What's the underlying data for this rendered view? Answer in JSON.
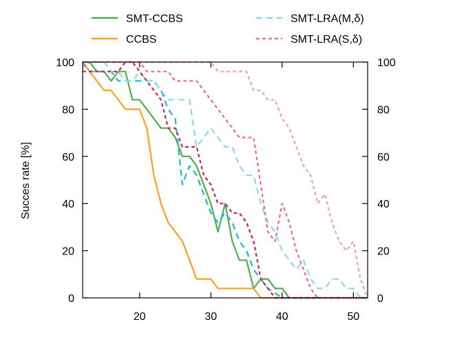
{
  "chart_data": {
    "type": "line",
    "xlabel": "",
    "ylabel": "Succes rate [%]",
    "xlim": [
      12,
      52
    ],
    "ylim": [
      0,
      100
    ],
    "xticks": [
      20,
      30,
      40,
      50
    ],
    "yticks": [
      0,
      20,
      40,
      60,
      80,
      100
    ],
    "y2ticks": [
      0,
      20,
      40,
      60,
      80,
      100
    ],
    "grid": false,
    "legend_position": "top, outside plot, two columns",
    "series": [
      {
        "name": "SMT-CCBS",
        "color": "#4daf4a",
        "dash": "solid",
        "points": [
          [
            12,
            100
          ],
          [
            13,
            100
          ],
          [
            14,
            96
          ],
          [
            15,
            96
          ],
          [
            16,
            92
          ],
          [
            17,
            96
          ],
          [
            18,
            96
          ],
          [
            19,
            84
          ],
          [
            20,
            84
          ],
          [
            21,
            80
          ],
          [
            22,
            76
          ],
          [
            23,
            72
          ],
          [
            24,
            72
          ],
          [
            25,
            68
          ],
          [
            26,
            60
          ],
          [
            27,
            60
          ],
          [
            28,
            56
          ],
          [
            29,
            48
          ],
          [
            30,
            40
          ],
          [
            31,
            28
          ],
          [
            32,
            40
          ],
          [
            33,
            24
          ],
          [
            34,
            16
          ],
          [
            35,
            16
          ],
          [
            36,
            4
          ],
          [
            37,
            8
          ],
          [
            38,
            8
          ],
          [
            39,
            4
          ],
          [
            40,
            4
          ],
          [
            41,
            0
          ],
          [
            52,
            0
          ]
        ]
      },
      {
        "name": "CCBS",
        "color": "#ff9f1c",
        "dash": "solid",
        "points": [
          [
            12,
            100
          ],
          [
            13,
            96
          ],
          [
            14,
            92
          ],
          [
            15,
            88
          ],
          [
            16,
            88
          ],
          [
            17,
            84
          ],
          [
            18,
            80
          ],
          [
            19,
            80
          ],
          [
            20,
            80
          ],
          [
            21,
            72
          ],
          [
            22,
            52
          ],
          [
            23,
            40
          ],
          [
            24,
            32
          ],
          [
            25,
            28
          ],
          [
            26,
            24
          ],
          [
            27,
            16
          ],
          [
            28,
            8
          ],
          [
            29,
            8
          ],
          [
            30,
            8
          ],
          [
            31,
            4
          ],
          [
            32,
            4
          ],
          [
            33,
            4
          ],
          [
            34,
            4
          ],
          [
            35,
            4
          ],
          [
            36,
            4
          ],
          [
            37,
            0
          ],
          [
            52,
            0
          ]
        ]
      },
      {
        "name": "",
        "color": "#1bb8cf",
        "dash": "long",
        "points": [
          [
            12,
            100
          ],
          [
            13,
            96
          ],
          [
            14,
            96
          ],
          [
            15,
            96
          ],
          [
            16,
            96
          ],
          [
            17,
            92
          ],
          [
            18,
            92
          ],
          [
            19,
            92
          ],
          [
            20,
            92
          ],
          [
            21,
            92
          ],
          [
            22,
            92
          ],
          [
            23,
            88
          ],
          [
            24,
            80
          ],
          [
            25,
            76
          ],
          [
            26,
            48
          ],
          [
            27,
            56
          ],
          [
            28,
            52
          ],
          [
            29,
            44
          ],
          [
            30,
            36
          ],
          [
            31,
            32
          ],
          [
            32,
            36
          ],
          [
            33,
            32
          ],
          [
            34,
            24
          ],
          [
            35,
            20
          ],
          [
            36,
            12
          ],
          [
            37,
            8
          ],
          [
            38,
            4
          ],
          [
            39,
            2
          ],
          [
            40,
            0
          ],
          [
            52,
            0
          ]
        ]
      },
      {
        "name": "SMT-LRA(M,δ)",
        "color": "#8ad8e8",
        "dash": "long",
        "points": [
          [
            12,
            100
          ],
          [
            13,
            100
          ],
          [
            14,
            100
          ],
          [
            15,
            100
          ],
          [
            16,
            96
          ],
          [
            17,
            96
          ],
          [
            18,
            92
          ],
          [
            19,
            92
          ],
          [
            20,
            96
          ],
          [
            21,
            92
          ],
          [
            22,
            92
          ],
          [
            23,
            88
          ],
          [
            24,
            84
          ],
          [
            25,
            84
          ],
          [
            26,
            84
          ],
          [
            27,
            84
          ],
          [
            28,
            64
          ],
          [
            29,
            68
          ],
          [
            30,
            72
          ],
          [
            31,
            68
          ],
          [
            32,
            64
          ],
          [
            33,
            64
          ],
          [
            34,
            56
          ],
          [
            35,
            52
          ],
          [
            36,
            52
          ],
          [
            37,
            40
          ],
          [
            38,
            32
          ],
          [
            39,
            28
          ],
          [
            40,
            20
          ],
          [
            41,
            16
          ],
          [
            42,
            12
          ],
          [
            43,
            16
          ],
          [
            44,
            8
          ],
          [
            45,
            4
          ],
          [
            46,
            4
          ],
          [
            47,
            8
          ],
          [
            48,
            8
          ],
          [
            49,
            4
          ],
          [
            50,
            4
          ],
          [
            51,
            0
          ],
          [
            52,
            0
          ]
        ]
      },
      {
        "name": "",
        "color": "#d81b60",
        "dash": "short",
        "points": [
          [
            12,
            96
          ],
          [
            13,
            96
          ],
          [
            14,
            96
          ],
          [
            15,
            96
          ],
          [
            16,
            96
          ],
          [
            17,
            96
          ],
          [
            18,
            100
          ],
          [
            19,
            100
          ],
          [
            20,
            96
          ],
          [
            21,
            92
          ],
          [
            22,
            88
          ],
          [
            23,
            84
          ],
          [
            24,
            72
          ],
          [
            25,
            72
          ],
          [
            26,
            64
          ],
          [
            27,
            64
          ],
          [
            28,
            64
          ],
          [
            29,
            52
          ],
          [
            30,
            48
          ],
          [
            31,
            40
          ],
          [
            32,
            40
          ],
          [
            33,
            36
          ],
          [
            34,
            36
          ],
          [
            35,
            32
          ],
          [
            36,
            24
          ],
          [
            37,
            8
          ],
          [
            38,
            4
          ],
          [
            39,
            0
          ],
          [
            52,
            0
          ]
        ]
      },
      {
        "name": "SMT-LRA(S,δ)",
        "color": "#e86b9a",
        "dash": "short",
        "points": [
          [
            12,
            98
          ],
          [
            13,
            100
          ],
          [
            14,
            100
          ],
          [
            15,
            100
          ],
          [
            16,
            100
          ],
          [
            17,
            100
          ],
          [
            18,
            100
          ],
          [
            19,
            100
          ],
          [
            20,
            100
          ],
          [
            21,
            96
          ],
          [
            22,
            96
          ],
          [
            23,
            96
          ],
          [
            24,
            96
          ],
          [
            25,
            92
          ],
          [
            26,
            92
          ],
          [
            27,
            92
          ],
          [
            28,
            92
          ],
          [
            29,
            88
          ],
          [
            30,
            84
          ],
          [
            31,
            80
          ],
          [
            32,
            76
          ],
          [
            33,
            72
          ],
          [
            34,
            68
          ],
          [
            35,
            68
          ],
          [
            36,
            68
          ],
          [
            37,
            48
          ],
          [
            38,
            28
          ],
          [
            39,
            24
          ],
          [
            40,
            40
          ],
          [
            41,
            32
          ],
          [
            42,
            20
          ],
          [
            43,
            12
          ],
          [
            44,
            4
          ],
          [
            45,
            0
          ],
          [
            52,
            0
          ]
        ]
      },
      {
        "name": "",
        "color": "#f49bbb",
        "dash": "short",
        "points": [
          [
            12,
            100
          ],
          [
            13,
            100
          ],
          [
            14,
            100
          ],
          [
            15,
            100
          ],
          [
            16,
            100
          ],
          [
            17,
            100
          ],
          [
            18,
            100
          ],
          [
            19,
            100
          ],
          [
            20,
            100
          ],
          [
            21,
            100
          ],
          [
            22,
            100
          ],
          [
            23,
            100
          ],
          [
            24,
            100
          ],
          [
            25,
            100
          ],
          [
            26,
            100
          ],
          [
            27,
            100
          ],
          [
            28,
            100
          ],
          [
            29,
            100
          ],
          [
            30,
            100
          ],
          [
            31,
            96
          ],
          [
            32,
            96
          ],
          [
            33,
            96
          ],
          [
            34,
            96
          ],
          [
            35,
            96
          ],
          [
            36,
            88
          ],
          [
            37,
            88
          ],
          [
            38,
            84
          ],
          [
            39,
            84
          ],
          [
            40,
            76
          ],
          [
            41,
            72
          ],
          [
            42,
            64
          ],
          [
            43,
            56
          ],
          [
            44,
            52
          ],
          [
            45,
            40
          ],
          [
            46,
            44
          ],
          [
            47,
            32
          ],
          [
            48,
            24
          ],
          [
            49,
            20
          ],
          [
            50,
            24
          ],
          [
            51,
            8
          ],
          [
            52,
            0
          ]
        ]
      }
    ]
  }
}
